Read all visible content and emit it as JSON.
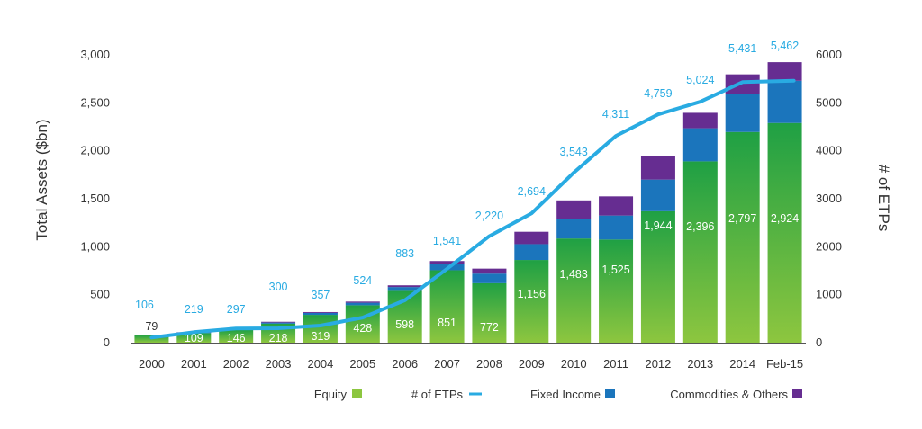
{
  "chart_data": {
    "type": "bar",
    "subtype": "stacked-bar-with-line",
    "categories": [
      "2000",
      "2001",
      "2002",
      "2003",
      "2004",
      "2005",
      "2006",
      "2007",
      "2008",
      "2009",
      "2010",
      "2011",
      "2012",
      "2013",
      "2014",
      "Feb-15"
    ],
    "series": [
      {
        "name": "Equity",
        "axis": "left",
        "values": [
          79,
          100,
          134,
          198,
          290,
          390,
          540,
          755,
          620,
          862,
          1086,
          1075,
          1370,
          1890,
          2196,
          2290
        ]
      },
      {
        "name": "Fixed Income",
        "axis": "left",
        "values": [
          0,
          5,
          8,
          12,
          20,
          26,
          40,
          62,
          100,
          165,
          200,
          250,
          330,
          345,
          400,
          440
        ]
      },
      {
        "name": "Commodities & Others",
        "axis": "left",
        "values": [
          0,
          4,
          4,
          8,
          9,
          12,
          18,
          34,
          52,
          129,
          197,
          200,
          244,
          161,
          201,
          194
        ]
      },
      {
        "name": "# of ETPs",
        "axis": "right",
        "type": "line",
        "values": [
          106,
          219,
          297,
          300,
          357,
          524,
          883,
          1541,
          2220,
          2694,
          3543,
          4311,
          4759,
          5024,
          5431,
          5462
        ]
      }
    ],
    "totals": [
      79,
      109,
      146,
      218,
      319,
      428,
      598,
      851,
      772,
      1156,
      1483,
      1525,
      1944,
      2396,
      2797,
      2924
    ],
    "total_labels": [
      "79",
      "109",
      "146",
      "218",
      "319",
      "428",
      "598",
      "851",
      "772",
      "1,156",
      "1,483",
      "1,525",
      "1,944",
      "2,396",
      "2,797",
      "2,924"
    ],
    "etp_labels": [
      "106",
      "219",
      "297",
      "300",
      "357",
      "524",
      "883",
      "1,541",
      "2,220",
      "2,694",
      "3,543",
      "4,311",
      "4,759",
      "5,024",
      "5,431",
      "5,462"
    ],
    "ylabel": "Total Assets ($bn)",
    "y2label": "# of ETPs",
    "ylim": [
      0,
      3000
    ],
    "y2lim": [
      0,
      6000
    ],
    "yticks": [
      0,
      500,
      1000,
      1500,
      2000,
      2500,
      3000
    ],
    "ytick_labels": [
      "0",
      "500",
      "1,000",
      "1,500",
      "2,000",
      "2,500",
      "3,000"
    ],
    "y2ticks": [
      0,
      1000,
      2000,
      3000,
      4000,
      5000,
      6000
    ],
    "y2tick_labels": [
      "0",
      "1000",
      "2000",
      "3000",
      "4000",
      "5000",
      "6000"
    ],
    "legend": [
      {
        "label": "Equity",
        "kind": "swatch",
        "color": "#8cc63f"
      },
      {
        "label": "# of ETPs",
        "kind": "line",
        "color": "#29abe2"
      },
      {
        "label": "Fixed Income",
        "kind": "swatch",
        "color": "#1b75bc"
      },
      {
        "label": "Commodities & Others",
        "kind": "swatch",
        "color": "#662d91"
      }
    ],
    "legend_position": "bottom",
    "grid": false
  },
  "colors": {
    "equity_bottom": "#8dc63f",
    "equity_top": "#1fa044",
    "fixed_income": "#1b75bc",
    "commodities": "#662d91",
    "etp_line": "#29abe2",
    "axis": "#555555"
  }
}
